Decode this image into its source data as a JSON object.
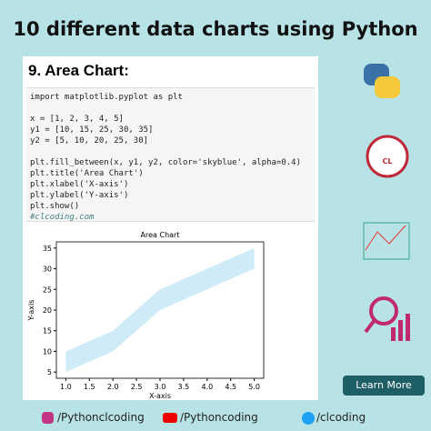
{
  "header": {
    "title": "10 different data charts using Python"
  },
  "card": {
    "heading": "9. Area Chart:",
    "code": [
      [
        "import matplotlib.pyplot as plt"
      ],
      [
        "x = [1, 2, 3, 4, 5]",
        "y1 = [10, 15, 25, 30, 35]",
        "y2 = [5, 10, 20, 25, 30]"
      ],
      [
        "plt.fill_between(x, y1, y2, color='skyblue', alpha=0.4)",
        "plt.title('Area Chart')",
        "plt.xlabel('X-axis')",
        "plt.ylabel('Y-axis')",
        "plt.show()",
        "#clcoding.com"
      ]
    ]
  },
  "chart_data": {
    "type": "band",
    "title": "Area Chart",
    "x_label": "X-axis",
    "y_label": "Y-axis",
    "x": [
      1,
      2,
      3,
      4,
      5
    ],
    "upper": [
      10,
      15,
      25,
      30,
      35
    ],
    "lower": [
      5,
      10,
      20,
      25,
      30
    ],
    "color": "#87ceeb",
    "alpha": 0.4,
    "xlim": [
      0.8,
      5.2
    ],
    "xticks": [
      {
        "value": 1,
        "label": "1.0"
      },
      {
        "value": 1.5,
        "label": "1.5"
      },
      {
        "value": 2,
        "label": "2.0"
      },
      {
        "value": 2.5,
        "label": "2.5"
      },
      {
        "value": 3,
        "label": "3.0"
      },
      {
        "value": 3.5,
        "label": "3.5"
      },
      {
        "value": 4,
        "label": "4.0"
      },
      {
        "value": 4.5,
        "label": "4.5"
      },
      {
        "value": 5,
        "label": "5.0"
      }
    ],
    "ylim": [
      3.5,
      36.5
    ],
    "yticks": [
      5,
      10,
      15,
      20,
      25,
      30,
      35
    ]
  },
  "button": {
    "label": "Learn More"
  },
  "footer": {
    "instagram": "/Pythonclcoding",
    "youtube": "/Pythoncoding",
    "twitter": "/clcoding"
  }
}
